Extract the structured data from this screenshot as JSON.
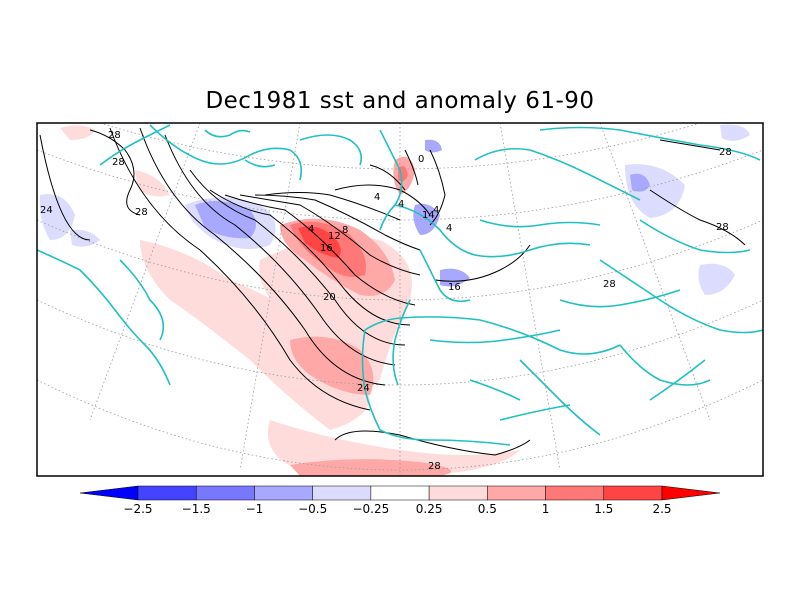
{
  "title": "Dec1981 sst and anomaly 61-90",
  "colorbar": {
    "colors": [
      "#0000ff",
      "#4444ff",
      "#7878ff",
      "#a8a8ff",
      "#dcdcff",
      "#ffffff",
      "#ffdcdc",
      "#ffa8a8",
      "#ff7878",
      "#ff4444",
      "#ff0000"
    ],
    "ticks": [
      "-2.5",
      "-1.5",
      "-1",
      "-0.5",
      "-0.25",
      "0.25",
      "0.5",
      "1",
      "1.5",
      "2.5"
    ]
  },
  "contour_labels": [
    "28",
    "28",
    "28",
    "24",
    "28",
    "4",
    "4",
    "4",
    "8",
    "12",
    "16",
    "20",
    "24",
    "28",
    "4",
    "4",
    "0",
    "16",
    "28",
    "28",
    "14"
  ],
  "colors": {
    "coast": "#20c0c0",
    "contour": "#000000",
    "grid": "#9a9a9a"
  }
}
